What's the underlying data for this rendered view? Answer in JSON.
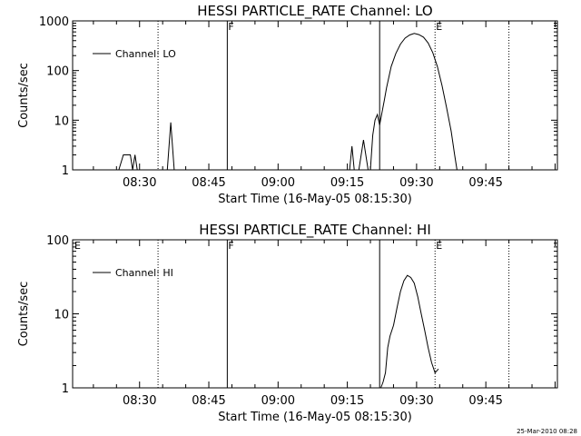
{
  "footer_text": "25-Mar-2010 08:28",
  "chart_data": [
    {
      "type": "line",
      "title": "HESSI PARTICLE_RATE Channel: LO",
      "xlabel": "Start Time (16-May-05 08:15:30)",
      "ylabel": "Counts/sec",
      "yscale": "log",
      "ylim": [
        1,
        1000
      ],
      "xlim": [
        "08:15:30",
        "10:00:30"
      ],
      "x_ticks": [
        "08:30",
        "08:45",
        "09:00",
        "09:15",
        "09:30",
        "09:45"
      ],
      "y_ticks": [
        "1",
        "10",
        "100",
        "1000"
      ],
      "legend": {
        "position": "top-left",
        "entries": [
          "Channel: LO"
        ]
      },
      "grid": false,
      "markers": [
        {
          "time": "08:34",
          "style": "dotted",
          "label": ""
        },
        {
          "time": "08:49",
          "style": "solid",
          "label": "F"
        },
        {
          "time": "09:22",
          "style": "solid",
          "label": ""
        },
        {
          "time": "09:34",
          "style": "dotted",
          "label": "E"
        },
        {
          "time": "09:50",
          "style": "dotted",
          "label": ""
        }
      ],
      "series": [
        {
          "name": "Channel: LO",
          "segments": [
            [
              [
                "08:25:30",
                1
              ],
              [
                "08:26:30",
                2
              ],
              [
                "08:28:00",
                2
              ],
              [
                "08:28:30",
                1
              ],
              [
                "08:29:00",
                2
              ],
              [
                "08:29:30",
                1
              ]
            ],
            [
              [
                "08:36:00",
                1
              ],
              [
                "08:36:45",
                9
              ],
              [
                "08:37:30",
                1
              ]
            ],
            [
              [
                "09:15:30",
                1
              ],
              [
                "09:16:00",
                3
              ],
              [
                "09:16:30",
                1
              ]
            ],
            [
              [
                "09:17:30",
                1
              ],
              [
                "09:18:30",
                4
              ],
              [
                "09:19:30",
                1
              ]
            ],
            [
              [
                "09:20:00",
                1
              ],
              [
                "09:20:30",
                5
              ],
              [
                "09:21:00",
                10
              ],
              [
                "09:21:30",
                13
              ],
              [
                "09:22:00",
                8
              ],
              [
                "09:22:30",
                14
              ],
              [
                "09:23:00",
                25
              ],
              [
                "09:23:30",
                45
              ],
              [
                "09:24:30",
                120
              ],
              [
                "09:25:30",
                220
              ],
              [
                "09:26:30",
                340
              ],
              [
                "09:27:30",
                450
              ],
              [
                "09:28:30",
                520
              ],
              [
                "09:29:30",
                560
              ],
              [
                "09:30:30",
                530
              ],
              [
                "09:31:30",
                470
              ],
              [
                "09:32:30",
                360
              ],
              [
                "09:33:30",
                230
              ],
              [
                "09:34:30",
                120
              ],
              [
                "09:35:30",
                50
              ],
              [
                "09:36:30",
                18
              ],
              [
                "09:37:30",
                6
              ],
              [
                "09:38:15",
                2
              ],
              [
                "09:38:45",
                1
              ]
            ]
          ]
        }
      ]
    },
    {
      "type": "line",
      "title": "HESSI PARTICLE_RATE Channel: HI",
      "xlabel": "Start Time (16-May-05 08:15:30)",
      "ylabel": "Counts/sec",
      "yscale": "log",
      "ylim": [
        1,
        100
      ],
      "xlim": [
        "08:15:30",
        "10:00:30"
      ],
      "x_ticks": [
        "08:30",
        "08:45",
        "09:00",
        "09:15",
        "09:30",
        "09:45"
      ],
      "y_ticks": [
        "1",
        "10",
        "100"
      ],
      "legend": {
        "position": "top-left",
        "entries": [
          "Channel: HI"
        ]
      },
      "grid": false,
      "markers": [
        {
          "time": "08:34",
          "style": "dotted",
          "label": ""
        },
        {
          "time": "08:49",
          "style": "solid",
          "label": "F"
        },
        {
          "time": "09:22",
          "style": "solid",
          "label": ""
        },
        {
          "time": "09:34",
          "style": "dotted",
          "label": "E"
        },
        {
          "time": "09:50",
          "style": "dotted",
          "label": ""
        }
      ],
      "corner_label": "E",
      "series": [
        {
          "name": "Channel: HI",
          "segments": [
            [
              [
                "09:22:15",
                1
              ],
              [
                "09:22:45",
                1.2
              ],
              [
                "09:23:15",
                1.6
              ],
              [
                "09:23:45",
                3.5
              ],
              [
                "09:24:15",
                5
              ],
              [
                "09:25:00",
                7
              ],
              [
                "09:25:45",
                12
              ],
              [
                "09:26:30",
                20
              ],
              [
                "09:27:15",
                28
              ],
              [
                "09:28:00",
                33
              ],
              [
                "09:28:45",
                31
              ],
              [
                "09:29:30",
                26
              ],
              [
                "09:30:15",
                17
              ],
              [
                "09:31:00",
                10
              ],
              [
                "09:31:45",
                6
              ],
              [
                "09:32:30",
                3.5
              ],
              [
                "09:33:15",
                2.2
              ],
              [
                "09:34:00",
                1.6
              ],
              [
                "09:34:45",
                1.8
              ]
            ]
          ]
        }
      ]
    }
  ]
}
